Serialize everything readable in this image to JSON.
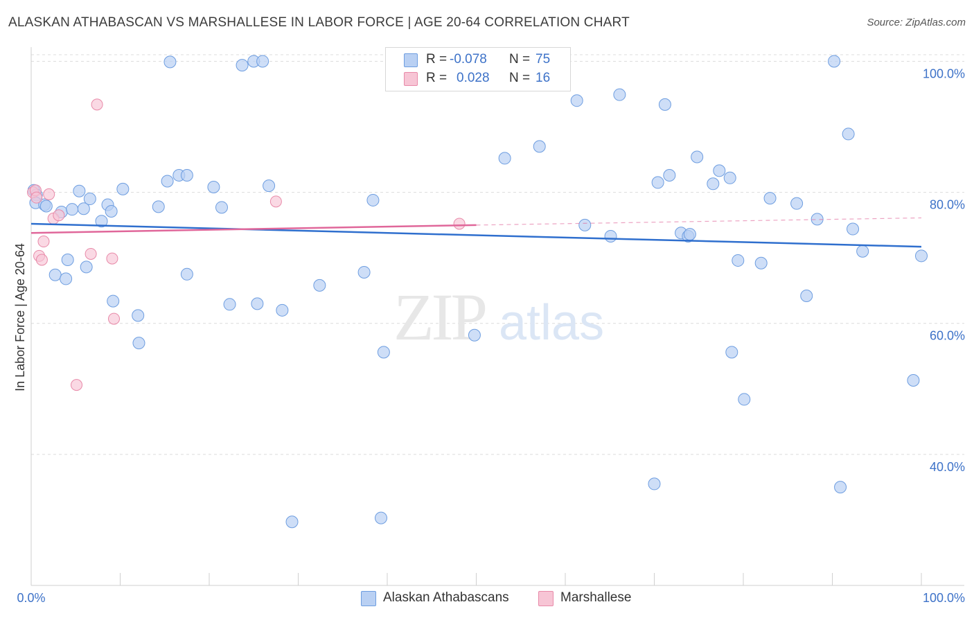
{
  "title": "ALASKAN ATHABASCAN VS MARSHALLESE IN LABOR FORCE | AGE 20-64 CORRELATION CHART",
  "source": "Source: ZipAtlas.com",
  "colors": {
    "blue": "#6d9de0",
    "blue_fill": "#b9d0f3",
    "pink": "#e889a8",
    "pink_fill": "#f7c5d5",
    "blue_line": "#2f6fce",
    "pink_line": "#e0679a",
    "axis_text": "#3d72c8"
  },
  "legend": {
    "rows": [
      {
        "r_label": "R =",
        "r_value": "-0.078",
        "n_label": "N =",
        "n_value": "75"
      },
      {
        "r_label": "R =",
        "r_value": "0.028",
        "n_label": "N =",
        "n_value": "16"
      }
    ]
  },
  "bottom_legend": {
    "series1": "Alaskan Athabascans",
    "series2": "Marshallese"
  },
  "watermark": {
    "zip": "ZIP",
    "atlas": "atlas"
  },
  "chart_data": {
    "type": "scatter",
    "xlabel": "",
    "ylabel": "In Labor Force | Age 20-64",
    "xlim": [
      0,
      100
    ],
    "ylim": [
      20,
      101
    ],
    "x_tick_labels": [
      "0.0%",
      "100.0%"
    ],
    "y_ticks": [
      40,
      60,
      80,
      100
    ],
    "y_tick_labels": [
      "40.0%",
      "60.0%",
      "80.0%",
      "100.0%"
    ],
    "series": [
      {
        "name": "Alaskan Athabascans",
        "r": -0.078,
        "n": 75,
        "trend": {
          "x0": 0,
          "y0": 75.2,
          "x1": 100,
          "y1": 71.7
        },
        "points": [
          [
            0.3,
            80.3
          ],
          [
            0.6,
            79.6
          ],
          [
            0.5,
            78.4
          ],
          [
            1.5,
            78.1
          ],
          [
            1.7,
            77.9
          ],
          [
            3.4,
            77.0
          ],
          [
            4.6,
            77.4
          ],
          [
            5.4,
            80.2
          ],
          [
            5.9,
            77.5
          ],
          [
            6.6,
            79.0
          ],
          [
            7.9,
            75.6
          ],
          [
            8.6,
            78.1
          ],
          [
            9.0,
            77.1
          ],
          [
            10.3,
            80.5
          ],
          [
            2.7,
            67.4
          ],
          [
            3.9,
            66.8
          ],
          [
            4.1,
            69.7
          ],
          [
            6.2,
            68.6
          ],
          [
            9.2,
            63.4
          ],
          [
            12.0,
            61.2
          ],
          [
            12.1,
            57.0
          ],
          [
            14.3,
            77.8
          ],
          [
            15.3,
            81.7
          ],
          [
            15.6,
            99.9
          ],
          [
            16.6,
            82.6
          ],
          [
            17.5,
            82.6
          ],
          [
            17.5,
            67.5
          ],
          [
            20.5,
            80.8
          ],
          [
            21.4,
            77.7
          ],
          [
            22.3,
            62.9
          ],
          [
            23.7,
            99.4
          ],
          [
            25.0,
            100.0
          ],
          [
            25.4,
            63.0
          ],
          [
            26.0,
            100.0
          ],
          [
            26.7,
            81.0
          ],
          [
            28.2,
            62.0
          ],
          [
            32.4,
            65.8
          ],
          [
            37.4,
            67.8
          ],
          [
            38.4,
            78.8
          ],
          [
            39.6,
            55.6
          ],
          [
            29.3,
            29.7
          ],
          [
            39.3,
            30.3
          ],
          [
            49.8,
            58.2
          ],
          [
            53.2,
            85.2
          ],
          [
            57.1,
            87.0
          ],
          [
            61.3,
            94.0
          ],
          [
            62.2,
            75.0
          ],
          [
            65.1,
            73.3
          ],
          [
            66.1,
            94.9
          ],
          [
            70.0,
            35.5
          ],
          [
            70.4,
            81.5
          ],
          [
            71.2,
            93.4
          ],
          [
            71.7,
            82.6
          ],
          [
            73.0,
            73.8
          ],
          [
            73.8,
            73.3
          ],
          [
            74.0,
            73.6
          ],
          [
            74.8,
            85.4
          ],
          [
            76.6,
            81.3
          ],
          [
            77.3,
            83.3
          ],
          [
            78.5,
            82.2
          ],
          [
            78.7,
            55.6
          ],
          [
            79.4,
            69.6
          ],
          [
            80.1,
            48.4
          ],
          [
            82.0,
            69.2
          ],
          [
            83.0,
            79.1
          ],
          [
            86.0,
            78.3
          ],
          [
            87.1,
            64.2
          ],
          [
            88.3,
            75.9
          ],
          [
            90.2,
            100.0
          ],
          [
            90.9,
            35.0
          ],
          [
            91.8,
            88.9
          ],
          [
            92.3,
            74.4
          ],
          [
            93.4,
            71.0
          ],
          [
            99.1,
            51.3
          ],
          [
            100.0,
            70.3
          ]
        ]
      },
      {
        "name": "Marshallese",
        "r": 0.028,
        "n": 16,
        "trend": {
          "x0": 0,
          "y0": 73.8,
          "x1": 50,
          "y1": 75.0
        },
        "trend_dashed": {
          "x0": 50,
          "y0": 75.0,
          "x1": 100,
          "y1": 76.1
        },
        "points": [
          [
            0.2,
            80.0
          ],
          [
            0.5,
            80.3
          ],
          [
            0.6,
            79.2
          ],
          [
            0.9,
            70.3
          ],
          [
            1.2,
            69.7
          ],
          [
            1.4,
            72.5
          ],
          [
            2.0,
            79.7
          ],
          [
            2.5,
            76.0
          ],
          [
            3.1,
            76.5
          ],
          [
            5.1,
            50.6
          ],
          [
            6.7,
            70.6
          ],
          [
            7.4,
            93.4
          ],
          [
            9.1,
            69.9
          ],
          [
            9.3,
            60.7
          ],
          [
            27.5,
            78.6
          ],
          [
            48.1,
            75.2
          ]
        ]
      }
    ]
  }
}
